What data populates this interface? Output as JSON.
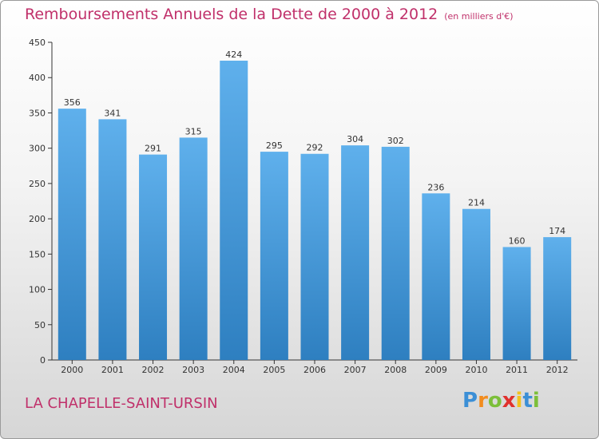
{
  "chart_data": {
    "type": "bar",
    "title": "Remboursements Annuels de la Dette de 2000 à 2012",
    "subtitle": "(en milliers d'€)",
    "categories": [
      "2000",
      "2001",
      "2002",
      "2003",
      "2004",
      "2005",
      "2006",
      "2007",
      "2008",
      "2009",
      "2010",
      "2011",
      "2012"
    ],
    "values": [
      356,
      341,
      291,
      315,
      424,
      295,
      292,
      304,
      302,
      236,
      214,
      160,
      174
    ],
    "ylim": [
      0,
      450
    ],
    "yticks": [
      0,
      50,
      100,
      150,
      200,
      250,
      300,
      350,
      400,
      450
    ],
    "grid": false,
    "bar_color": "#3f95d4",
    "xlabel": "",
    "ylabel": ""
  },
  "footer": {
    "city": "LA CHAPELLE-SAINT-URSIN",
    "logo_letters": [
      "P",
      "r",
      "o",
      "x",
      "i",
      "t",
      "i"
    ],
    "logo_colors": [
      "#3b8fd6",
      "#f28c1e",
      "#7cbf3a",
      "#e0312d",
      "#f2c21e",
      "#3b8fd6",
      "#7cbf3a"
    ]
  },
  "colors": {
    "accent": "#c0306a"
  }
}
